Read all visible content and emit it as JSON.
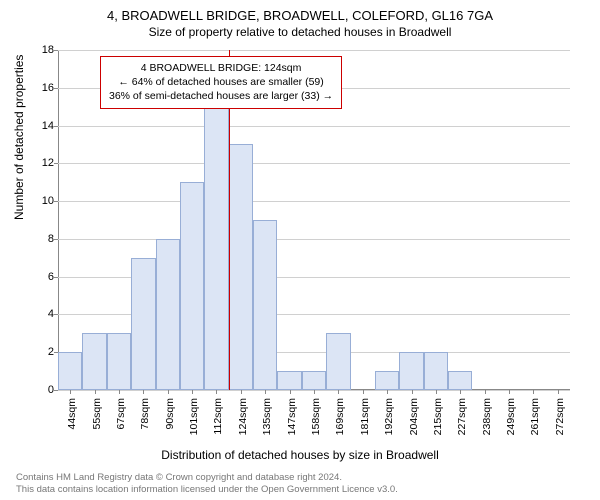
{
  "title_line1": "4, BROADWELL BRIDGE, BROADWELL, COLEFORD, GL16 7GA",
  "title_line2": "Size of property relative to detached houses in Broadwell",
  "y_axis_label": "Number of detached properties",
  "x_axis_label": "Distribution of detached houses by size in Broadwell",
  "footer_line1": "Contains HM Land Registry data © Crown copyright and database right 2024.",
  "footer_line2": "This data contains location information licensed under the Open Government Licence v3.0.",
  "chart": {
    "type": "histogram",
    "ylim": [
      0,
      18
    ],
    "ytick_step": 2,
    "yticks": [
      0,
      2,
      4,
      6,
      8,
      10,
      12,
      14,
      16,
      18
    ],
    "x_categories": [
      "44sqm",
      "55sqm",
      "67sqm",
      "78sqm",
      "90sqm",
      "101sqm",
      "112sqm",
      "124sqm",
      "135sqm",
      "147sqm",
      "158sqm",
      "169sqm",
      "181sqm",
      "192sqm",
      "204sqm",
      "215sqm",
      "227sqm",
      "238sqm",
      "249sqm",
      "261sqm",
      "272sqm"
    ],
    "values": [
      2,
      3,
      3,
      7,
      8,
      11,
      15,
      13,
      9,
      1,
      1,
      3,
      0,
      1,
      2,
      2,
      1,
      0,
      0,
      0,
      0
    ],
    "bar_fill": "#dce5f5",
    "bar_border": "#98aed6",
    "grid_color": "#d0d0d0",
    "background": "#ffffff",
    "marker_index": 7,
    "marker_color": "#cc0000",
    "annotation": {
      "line1": "4 BROADWELL BRIDGE: 124sqm",
      "line2": "← 64% of detached houses are smaller (59)",
      "line3": "36% of semi-detached houses are larger (33) →",
      "border_color": "#cc0000",
      "background": "#ffffff"
    },
    "title_fontsize": 13,
    "subtitle_fontsize": 12,
    "axis_label_fontsize": 12,
    "tick_fontsize": 11,
    "annot_fontsize": 10.5
  }
}
